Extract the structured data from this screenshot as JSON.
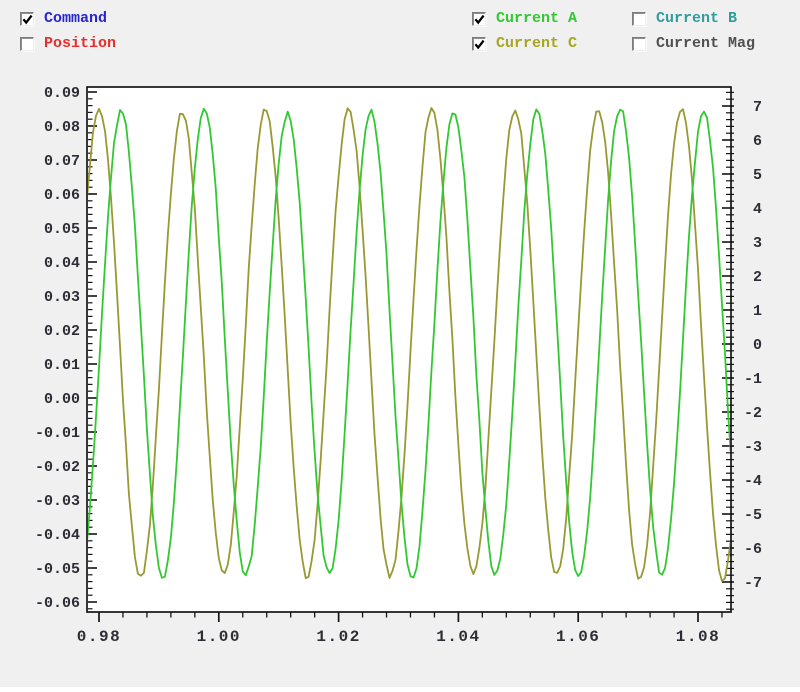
{
  "legend": {
    "items": [
      {
        "id": "command",
        "label": "Command",
        "checked": true,
        "color": "#2626cc"
      },
      {
        "id": "position",
        "label": "Position",
        "checked": false,
        "color": "#e62e2e"
      },
      {
        "id": "current-a",
        "label": "Current A",
        "checked": true,
        "color": "#32c832"
      },
      {
        "id": "current-c",
        "label": "Current C",
        "checked": true,
        "color": "#a6a622"
      },
      {
        "id": "current-b",
        "label": "Current B",
        "checked": false,
        "color": "#309c9c"
      },
      {
        "id": "current-mag",
        "label": "Current Mag",
        "checked": false,
        "color": "#505050"
      }
    ]
  },
  "chart_data": {
    "type": "line",
    "title": "",
    "xlabel": "",
    "ylabel_left": "",
    "ylabel_right": "",
    "grid": false,
    "x_axis": {
      "visible_range": [
        0.978,
        1.0855
      ],
      "major_tick_step": 0.02,
      "minor_tick_step": 0.004,
      "tick_values": [
        0.98,
        1.0,
        1.02,
        1.04,
        1.06,
        1.08
      ],
      "tick_labels": [
        "0.98",
        "1.00",
        "1.02",
        "1.04",
        "1.06",
        "1.08"
      ]
    },
    "left_axis": {
      "range": [
        -0.0635,
        0.0915
      ],
      "major_tick_step": 0.01,
      "minor_tick_step": 0.002,
      "tick_values": [
        0.09,
        0.08,
        0.07,
        0.06,
        0.05,
        0.04,
        0.03,
        0.02,
        0.01,
        0.0,
        -0.01,
        -0.02,
        -0.03,
        -0.04,
        -0.05,
        -0.06
      ],
      "tick_labels": [
        "0.09",
        "0.08",
        "0.07",
        "0.06",
        "0.05",
        "0.04",
        "0.03",
        "0.02",
        "0.01",
        "0.00",
        "-0.01",
        "-0.02",
        "-0.03",
        "-0.04",
        "-0.05",
        "-0.06"
      ]
    },
    "right_axis": {
      "range": [
        -7.9,
        7.55
      ],
      "major_tick_step": 1,
      "minor_tick_step": 0.2,
      "tick_values": [
        7,
        6,
        5,
        4,
        3,
        2,
        1,
        0,
        -1,
        -2,
        -3,
        -4,
        -5,
        -6,
        -7
      ],
      "tick_labels": [
        "7",
        "6",
        "5",
        "4",
        "3",
        "2",
        "1",
        "0",
        "-1",
        "-2",
        "-3",
        "-4",
        "-5",
        "-6",
        "-7"
      ]
    },
    "series": [
      {
        "name": "Current C",
        "color": "#999933",
        "axis": "right",
        "waveform": "sine",
        "amplitude_A": 6.85,
        "frequency_hz": 72,
        "peak_time_s": 0.98,
        "noise_A": 0.09
      },
      {
        "name": "Current A",
        "color": "#32c832",
        "axis": "right",
        "waveform": "sine",
        "amplitude_A": 6.85,
        "frequency_hz": 72,
        "peak_time_s": 0.9837,
        "noise_A": 0.09
      }
    ],
    "sample_interval_s": 0.0005
  },
  "colors": {
    "page_bg": "#f0f0f0",
    "plot_bg": "#ffffff",
    "axis_line": "#141414",
    "axis_text": "#2d2d35"
  }
}
